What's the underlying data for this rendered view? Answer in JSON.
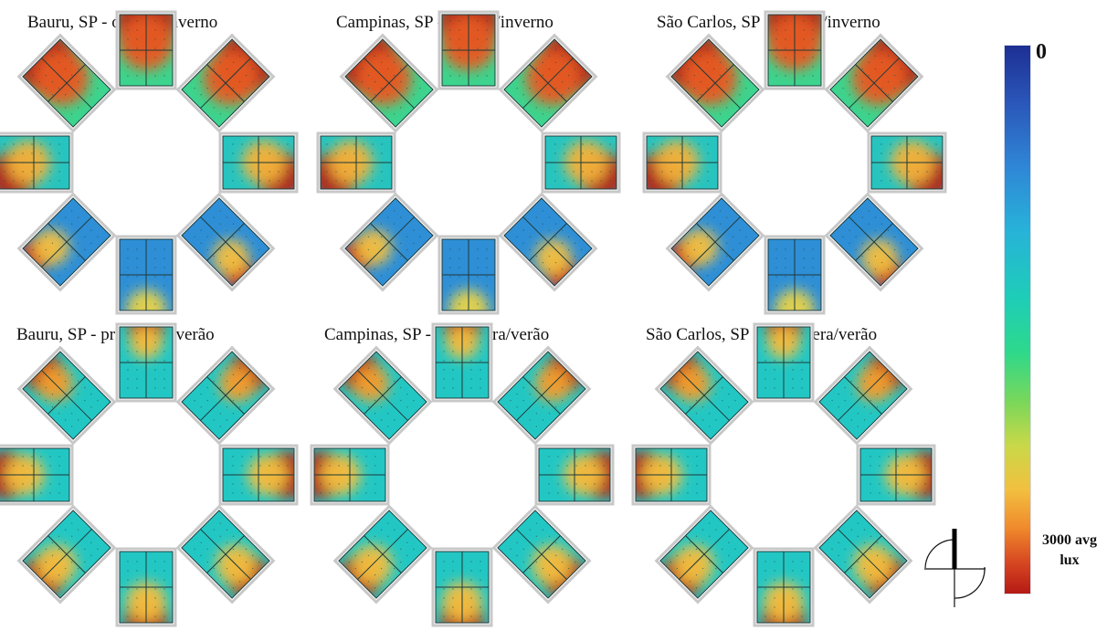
{
  "panels": [
    {
      "title": "Bauru, SP - outono/inverno",
      "season": "autumn-winter"
    },
    {
      "title": "Campinas, SP - outono/inverno",
      "season": "autumn-winter"
    },
    {
      "title": "São Carlos, SP - outono/inverno",
      "season": "autumn-winter"
    },
    {
      "title": "Bauru, SP - primavera/verão",
      "season": "spring-summer"
    },
    {
      "title": "Campinas, SP - primavera/verão",
      "season": "spring-summer"
    },
    {
      "title": "São Carlos, SP - primavera/verão",
      "season": "spring-summer"
    }
  ],
  "colorbar": {
    "min_label": "0",
    "max_label_value": "3000 avg",
    "max_label_unit": "lux",
    "low_color": "#1d2f93",
    "high_color": "#b51a14"
  },
  "north_arrow_icon": "north-arrow-icon"
}
